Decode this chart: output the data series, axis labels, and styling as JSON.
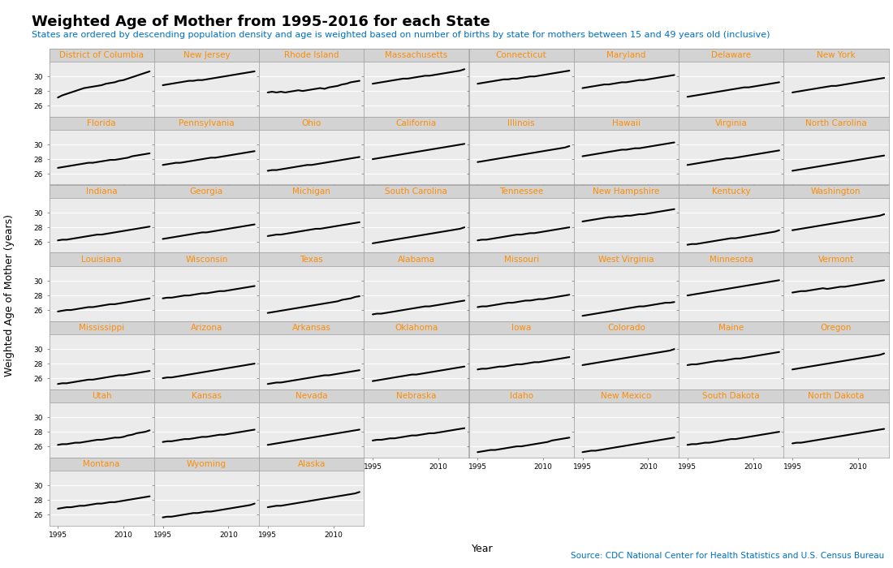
{
  "title": "Weighted Age of Mother from 1995-2016 for each State",
  "subtitle": "States are ordered by descending population density and age is weighted based on number of births by state for mothers between 15 and 49 years old (inclusive)",
  "xlabel": "Year",
  "ylabel": "Weighted Age of Mother (years)",
  "source": "Source: CDC National Center for Health Statistics and U.S. Census Bureau",
  "years": [
    1995,
    1996,
    1997,
    1998,
    1999,
    2000,
    2001,
    2002,
    2003,
    2004,
    2005,
    2006,
    2007,
    2008,
    2009,
    2010,
    2011,
    2012,
    2013,
    2014,
    2015,
    2016
  ],
  "states_ordered": [
    "District of Columbia",
    "New Jersey",
    "Rhode Island",
    "Massachusetts",
    "Connecticut",
    "Maryland",
    "Delaware",
    "New York",
    "Florida",
    "Pennsylvania",
    "Ohio",
    "California",
    "Illinois",
    "Hawaii",
    "Virginia",
    "North Carolina",
    "Indiana",
    "Georgia",
    "Michigan",
    "South Carolina",
    "Tennessee",
    "New Hampshire",
    "Kentucky",
    "Washington",
    "Louisiana",
    "Wisconsin",
    "Texas",
    "Alabama",
    "Missouri",
    "West Virginia",
    "Minnesota",
    "Vermont",
    "Mississippi",
    "Arizona",
    "Arkansas",
    "Oklahoma",
    "Iowa",
    "Colorado",
    "Maine",
    "Oregon",
    "Utah",
    "Kansas",
    "Nevada",
    "Nebraska",
    "Idaho",
    "New Mexico",
    "South Dakota",
    "North Dakota",
    "Montana",
    "Wyoming",
    "Alaska"
  ],
  "state_data": {
    "District of Columbia": [
      27.1,
      27.4,
      27.6,
      27.8,
      28.0,
      28.2,
      28.4,
      28.5,
      28.6,
      28.7,
      28.8,
      29.0,
      29.1,
      29.2,
      29.4,
      29.5,
      29.7,
      29.9,
      30.1,
      30.3,
      30.5,
      30.7
    ],
    "New Jersey": [
      28.8,
      28.9,
      29.0,
      29.1,
      29.2,
      29.3,
      29.4,
      29.4,
      29.5,
      29.5,
      29.6,
      29.7,
      29.8,
      29.9,
      30.0,
      30.1,
      30.2,
      30.3,
      30.4,
      30.5,
      30.6,
      30.7
    ],
    "Rhode Island": [
      27.8,
      27.9,
      27.8,
      27.9,
      27.8,
      27.9,
      28.0,
      28.1,
      28.0,
      28.1,
      28.2,
      28.3,
      28.4,
      28.3,
      28.5,
      28.6,
      28.7,
      28.9,
      29.0,
      29.2,
      29.3,
      29.4
    ],
    "Massachusetts": [
      29.0,
      29.1,
      29.2,
      29.3,
      29.4,
      29.5,
      29.6,
      29.7,
      29.7,
      29.8,
      29.9,
      30.0,
      30.1,
      30.1,
      30.2,
      30.3,
      30.4,
      30.5,
      30.6,
      30.7,
      30.8,
      31.0
    ],
    "Connecticut": [
      29.0,
      29.1,
      29.2,
      29.3,
      29.4,
      29.5,
      29.6,
      29.6,
      29.7,
      29.7,
      29.8,
      29.9,
      30.0,
      30.0,
      30.1,
      30.2,
      30.3,
      30.4,
      30.5,
      30.6,
      30.7,
      30.8
    ],
    "Maryland": [
      28.4,
      28.5,
      28.6,
      28.7,
      28.8,
      28.9,
      28.9,
      29.0,
      29.1,
      29.2,
      29.2,
      29.3,
      29.4,
      29.5,
      29.5,
      29.6,
      29.7,
      29.8,
      29.9,
      30.0,
      30.1,
      30.2
    ],
    "Delaware": [
      27.2,
      27.3,
      27.4,
      27.5,
      27.6,
      27.7,
      27.8,
      27.9,
      28.0,
      28.1,
      28.2,
      28.3,
      28.4,
      28.5,
      28.5,
      28.6,
      28.7,
      28.8,
      28.9,
      29.0,
      29.1,
      29.2
    ],
    "New York": [
      27.8,
      27.9,
      28.0,
      28.1,
      28.2,
      28.3,
      28.4,
      28.5,
      28.6,
      28.7,
      28.7,
      28.8,
      28.9,
      29.0,
      29.1,
      29.2,
      29.3,
      29.4,
      29.5,
      29.6,
      29.7,
      29.8
    ],
    "Florida": [
      26.8,
      26.9,
      27.0,
      27.1,
      27.2,
      27.3,
      27.4,
      27.5,
      27.5,
      27.6,
      27.7,
      27.8,
      27.9,
      27.9,
      28.0,
      28.1,
      28.2,
      28.4,
      28.5,
      28.6,
      28.7,
      28.8
    ],
    "Pennsylvania": [
      27.2,
      27.3,
      27.4,
      27.5,
      27.5,
      27.6,
      27.7,
      27.8,
      27.9,
      28.0,
      28.1,
      28.2,
      28.2,
      28.3,
      28.4,
      28.5,
      28.6,
      28.7,
      28.8,
      28.9,
      29.0,
      29.1
    ],
    "Ohio": [
      26.4,
      26.5,
      26.5,
      26.6,
      26.7,
      26.8,
      26.9,
      27.0,
      27.1,
      27.2,
      27.2,
      27.3,
      27.4,
      27.5,
      27.6,
      27.7,
      27.8,
      27.9,
      28.0,
      28.1,
      28.2,
      28.3
    ],
    "California": [
      28.0,
      28.1,
      28.2,
      28.3,
      28.4,
      28.5,
      28.6,
      28.7,
      28.8,
      28.9,
      29.0,
      29.1,
      29.2,
      29.3,
      29.4,
      29.5,
      29.6,
      29.7,
      29.8,
      29.9,
      30.0,
      30.1
    ],
    "Illinois": [
      27.6,
      27.7,
      27.8,
      27.9,
      28.0,
      28.1,
      28.2,
      28.3,
      28.4,
      28.5,
      28.6,
      28.7,
      28.8,
      28.9,
      29.0,
      29.1,
      29.2,
      29.3,
      29.4,
      29.5,
      29.6,
      29.8
    ],
    "Hawaii": [
      28.4,
      28.5,
      28.6,
      28.7,
      28.8,
      28.9,
      29.0,
      29.1,
      29.2,
      29.3,
      29.3,
      29.4,
      29.5,
      29.5,
      29.6,
      29.7,
      29.8,
      29.9,
      30.0,
      30.1,
      30.2,
      30.3
    ],
    "Virginia": [
      27.2,
      27.3,
      27.4,
      27.5,
      27.6,
      27.7,
      27.8,
      27.9,
      28.0,
      28.1,
      28.1,
      28.2,
      28.3,
      28.4,
      28.5,
      28.6,
      28.7,
      28.8,
      28.9,
      29.0,
      29.1,
      29.2
    ],
    "North Carolina": [
      26.4,
      26.5,
      26.6,
      26.7,
      26.8,
      26.9,
      27.0,
      27.1,
      27.2,
      27.3,
      27.4,
      27.5,
      27.6,
      27.7,
      27.8,
      27.9,
      28.0,
      28.1,
      28.2,
      28.3,
      28.4,
      28.5
    ],
    "Indiana": [
      26.2,
      26.3,
      26.3,
      26.4,
      26.5,
      26.6,
      26.7,
      26.8,
      26.9,
      27.0,
      27.0,
      27.1,
      27.2,
      27.3,
      27.4,
      27.5,
      27.6,
      27.7,
      27.8,
      27.9,
      28.0,
      28.1
    ],
    "Georgia": [
      26.4,
      26.5,
      26.6,
      26.7,
      26.8,
      26.9,
      27.0,
      27.1,
      27.2,
      27.3,
      27.3,
      27.4,
      27.5,
      27.6,
      27.7,
      27.8,
      27.9,
      28.0,
      28.1,
      28.2,
      28.3,
      28.4
    ],
    "Michigan": [
      26.8,
      26.9,
      27.0,
      27.0,
      27.1,
      27.2,
      27.3,
      27.4,
      27.5,
      27.6,
      27.7,
      27.8,
      27.8,
      27.9,
      28.0,
      28.1,
      28.2,
      28.3,
      28.4,
      28.5,
      28.6,
      28.7
    ],
    "South Carolina": [
      25.8,
      25.9,
      26.0,
      26.1,
      26.2,
      26.3,
      26.4,
      26.5,
      26.6,
      26.7,
      26.8,
      26.9,
      27.0,
      27.1,
      27.2,
      27.3,
      27.4,
      27.5,
      27.6,
      27.7,
      27.8,
      28.0
    ],
    "Tennessee": [
      26.2,
      26.3,
      26.3,
      26.4,
      26.5,
      26.6,
      26.7,
      26.8,
      26.9,
      27.0,
      27.0,
      27.1,
      27.2,
      27.2,
      27.3,
      27.4,
      27.5,
      27.6,
      27.7,
      27.8,
      27.9,
      28.0
    ],
    "New Hampshire": [
      28.8,
      28.9,
      29.0,
      29.1,
      29.2,
      29.3,
      29.4,
      29.4,
      29.5,
      29.5,
      29.6,
      29.6,
      29.7,
      29.8,
      29.8,
      29.9,
      30.0,
      30.1,
      30.2,
      30.3,
      30.4,
      30.5
    ],
    "Kentucky": [
      25.6,
      25.7,
      25.7,
      25.8,
      25.9,
      26.0,
      26.1,
      26.2,
      26.3,
      26.4,
      26.5,
      26.5,
      26.6,
      26.7,
      26.8,
      26.9,
      27.0,
      27.1,
      27.2,
      27.3,
      27.4,
      27.6
    ],
    "Washington": [
      27.6,
      27.7,
      27.8,
      27.9,
      28.0,
      28.1,
      28.2,
      28.3,
      28.4,
      28.5,
      28.6,
      28.7,
      28.8,
      28.9,
      29.0,
      29.1,
      29.2,
      29.3,
      29.4,
      29.5,
      29.6,
      29.8
    ],
    "Louisiana": [
      25.8,
      25.9,
      26.0,
      26.0,
      26.1,
      26.2,
      26.3,
      26.4,
      26.4,
      26.5,
      26.6,
      26.7,
      26.8,
      26.8,
      26.9,
      27.0,
      27.1,
      27.2,
      27.3,
      27.4,
      27.5,
      27.6
    ],
    "Wisconsin": [
      27.6,
      27.7,
      27.7,
      27.8,
      27.9,
      28.0,
      28.0,
      28.1,
      28.2,
      28.3,
      28.3,
      28.4,
      28.5,
      28.6,
      28.6,
      28.7,
      28.8,
      28.9,
      29.0,
      29.1,
      29.2,
      29.3
    ],
    "Texas": [
      25.6,
      25.7,
      25.8,
      25.9,
      26.0,
      26.1,
      26.2,
      26.3,
      26.4,
      26.5,
      26.6,
      26.7,
      26.8,
      26.9,
      27.0,
      27.1,
      27.2,
      27.4,
      27.5,
      27.6,
      27.8,
      27.9
    ],
    "Alabama": [
      25.4,
      25.5,
      25.5,
      25.6,
      25.7,
      25.8,
      25.9,
      26.0,
      26.1,
      26.2,
      26.3,
      26.4,
      26.5,
      26.5,
      26.6,
      26.7,
      26.8,
      26.9,
      27.0,
      27.1,
      27.2,
      27.3
    ],
    "Missouri": [
      26.4,
      26.5,
      26.5,
      26.6,
      26.7,
      26.8,
      26.9,
      27.0,
      27.0,
      27.1,
      27.2,
      27.3,
      27.3,
      27.4,
      27.5,
      27.5,
      27.6,
      27.7,
      27.8,
      27.9,
      28.0,
      28.1
    ],
    "West Virginia": [
      25.2,
      25.3,
      25.4,
      25.5,
      25.6,
      25.7,
      25.8,
      25.9,
      26.0,
      26.1,
      26.2,
      26.3,
      26.4,
      26.5,
      26.5,
      26.6,
      26.7,
      26.8,
      26.9,
      27.0,
      27.0,
      27.1
    ],
    "Minnesota": [
      28.0,
      28.1,
      28.2,
      28.3,
      28.4,
      28.5,
      28.6,
      28.7,
      28.8,
      28.9,
      29.0,
      29.1,
      29.2,
      29.3,
      29.4,
      29.5,
      29.6,
      29.7,
      29.8,
      29.9,
      30.0,
      30.1
    ],
    "Vermont": [
      28.4,
      28.5,
      28.6,
      28.6,
      28.7,
      28.8,
      28.9,
      29.0,
      28.9,
      29.0,
      29.1,
      29.2,
      29.2,
      29.3,
      29.4,
      29.5,
      29.6,
      29.7,
      29.8,
      29.9,
      30.0,
      30.1
    ],
    "Mississippi": [
      25.2,
      25.3,
      25.3,
      25.4,
      25.5,
      25.6,
      25.7,
      25.8,
      25.8,
      25.9,
      26.0,
      26.1,
      26.2,
      26.3,
      26.4,
      26.4,
      26.5,
      26.6,
      26.7,
      26.8,
      26.9,
      27.0
    ],
    "Arizona": [
      26.0,
      26.1,
      26.1,
      26.2,
      26.3,
      26.4,
      26.5,
      26.6,
      26.7,
      26.8,
      26.9,
      27.0,
      27.1,
      27.2,
      27.3,
      27.4,
      27.5,
      27.6,
      27.7,
      27.8,
      27.9,
      28.0
    ],
    "Arkansas": [
      25.2,
      25.3,
      25.4,
      25.4,
      25.5,
      25.6,
      25.7,
      25.8,
      25.9,
      26.0,
      26.1,
      26.2,
      26.3,
      26.4,
      26.4,
      26.5,
      26.6,
      26.7,
      26.8,
      26.9,
      27.0,
      27.1
    ],
    "Oklahoma": [
      25.6,
      25.7,
      25.8,
      25.9,
      26.0,
      26.1,
      26.2,
      26.3,
      26.4,
      26.5,
      26.5,
      26.6,
      26.7,
      26.8,
      26.9,
      27.0,
      27.1,
      27.2,
      27.3,
      27.4,
      27.5,
      27.6
    ],
    "Iowa": [
      27.2,
      27.3,
      27.3,
      27.4,
      27.5,
      27.6,
      27.6,
      27.7,
      27.8,
      27.9,
      27.9,
      28.0,
      28.1,
      28.2,
      28.2,
      28.3,
      28.4,
      28.5,
      28.6,
      28.7,
      28.8,
      28.9
    ],
    "Colorado": [
      27.8,
      27.9,
      28.0,
      28.1,
      28.2,
      28.3,
      28.4,
      28.5,
      28.6,
      28.7,
      28.8,
      28.9,
      29.0,
      29.1,
      29.2,
      29.3,
      29.4,
      29.5,
      29.6,
      29.7,
      29.8,
      30.0
    ],
    "Maine": [
      27.8,
      27.9,
      27.9,
      28.0,
      28.1,
      28.2,
      28.3,
      28.4,
      28.4,
      28.5,
      28.6,
      28.7,
      28.7,
      28.8,
      28.9,
      29.0,
      29.1,
      29.2,
      29.3,
      29.4,
      29.5,
      29.6
    ],
    "Oregon": [
      27.2,
      27.3,
      27.4,
      27.5,
      27.6,
      27.7,
      27.8,
      27.9,
      28.0,
      28.1,
      28.2,
      28.3,
      28.4,
      28.5,
      28.6,
      28.7,
      28.8,
      28.9,
      29.0,
      29.1,
      29.2,
      29.4
    ],
    "Utah": [
      26.2,
      26.3,
      26.3,
      26.4,
      26.5,
      26.5,
      26.6,
      26.7,
      26.8,
      26.9,
      26.9,
      27.0,
      27.1,
      27.2,
      27.2,
      27.3,
      27.5,
      27.6,
      27.8,
      27.9,
      28.0,
      28.2
    ],
    "Kansas": [
      26.6,
      26.7,
      26.7,
      26.8,
      26.9,
      27.0,
      27.0,
      27.1,
      27.2,
      27.3,
      27.3,
      27.4,
      27.5,
      27.6,
      27.6,
      27.7,
      27.8,
      27.9,
      28.0,
      28.1,
      28.2,
      28.3
    ],
    "Nevada": [
      26.2,
      26.3,
      26.4,
      26.5,
      26.6,
      26.7,
      26.8,
      26.9,
      27.0,
      27.1,
      27.2,
      27.3,
      27.4,
      27.5,
      27.6,
      27.7,
      27.8,
      27.9,
      28.0,
      28.1,
      28.2,
      28.3
    ],
    "Nebraska": [
      26.8,
      26.9,
      26.9,
      27.0,
      27.1,
      27.1,
      27.2,
      27.3,
      27.4,
      27.5,
      27.5,
      27.6,
      27.7,
      27.8,
      27.8,
      27.9,
      28.0,
      28.1,
      28.2,
      28.3,
      28.4,
      28.5
    ],
    "Idaho": [
      25.2,
      25.3,
      25.4,
      25.5,
      25.5,
      25.6,
      25.7,
      25.8,
      25.9,
      26.0,
      26.0,
      26.1,
      26.2,
      26.3,
      26.4,
      26.5,
      26.6,
      26.8,
      26.9,
      27.0,
      27.1,
      27.2
    ],
    "New Mexico": [
      25.2,
      25.3,
      25.4,
      25.4,
      25.5,
      25.6,
      25.7,
      25.8,
      25.9,
      26.0,
      26.1,
      26.2,
      26.3,
      26.4,
      26.5,
      26.6,
      26.7,
      26.8,
      26.9,
      27.0,
      27.1,
      27.2
    ],
    "South Dakota": [
      26.2,
      26.3,
      26.3,
      26.4,
      26.5,
      26.5,
      26.6,
      26.7,
      26.8,
      26.9,
      27.0,
      27.0,
      27.1,
      27.2,
      27.3,
      27.4,
      27.5,
      27.6,
      27.7,
      27.8,
      27.9,
      28.0
    ],
    "North Dakota": [
      26.4,
      26.5,
      26.5,
      26.6,
      26.7,
      26.8,
      26.9,
      27.0,
      27.1,
      27.2,
      27.3,
      27.4,
      27.5,
      27.6,
      27.7,
      27.8,
      27.9,
      28.0,
      28.1,
      28.2,
      28.3,
      28.4
    ],
    "Montana": [
      26.8,
      26.9,
      27.0,
      27.0,
      27.1,
      27.2,
      27.2,
      27.3,
      27.4,
      27.5,
      27.5,
      27.6,
      27.7,
      27.7,
      27.8,
      27.9,
      28.0,
      28.1,
      28.2,
      28.3,
      28.4,
      28.5
    ],
    "Wyoming": [
      25.6,
      25.7,
      25.7,
      25.8,
      25.9,
      26.0,
      26.1,
      26.2,
      26.2,
      26.3,
      26.4,
      26.4,
      26.5,
      26.6,
      26.7,
      26.8,
      26.9,
      27.0,
      27.1,
      27.2,
      27.3,
      27.5
    ],
    "Alaska": [
      27.0,
      27.1,
      27.2,
      27.2,
      27.3,
      27.4,
      27.5,
      27.6,
      27.7,
      27.8,
      27.9,
      28.0,
      28.1,
      28.2,
      28.3,
      28.4,
      28.5,
      28.6,
      28.7,
      28.8,
      28.9,
      29.1
    ]
  },
  "ncols": 8,
  "title_color": "#000000",
  "subtitle_color": "#0070C0",
  "source_color": "#0070C0",
  "panel_header_bg": "#D3D3D3",
  "panel_header_color": "#FF8C00",
  "plot_bg_color": "#EBEBEB",
  "line_color": "#000000",
  "grid_color": "#FFFFFF",
  "ylim": [
    24.5,
    32.0
  ],
  "yticks": [
    26,
    28,
    30
  ],
  "xticks": [
    1995,
    2010
  ],
  "title_fontsize": 13,
  "subtitle_fontsize": 8,
  "source_fontsize": 7.5,
  "panel_label_fontsize": 7.5,
  "tick_fontsize": 6.5,
  "axis_label_fontsize": 9,
  "line_width": 1.5
}
